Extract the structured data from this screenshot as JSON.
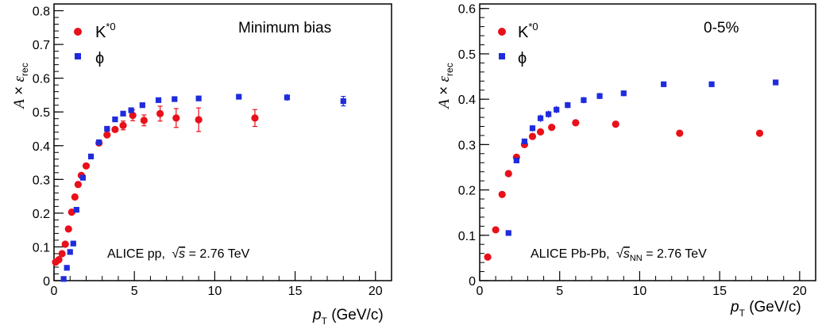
{
  "colors": {
    "kstar": "#e8101a",
    "phi": "#1f2bdc",
    "axis": "#000000"
  },
  "chart_data": [
    {
      "type": "scatter",
      "annotation": "Minimum bias",
      "system_label": "ALICE   pp,",
      "energy_label": "= 2.76 TeV",
      "xlabel_unit": "(GeV/c)",
      "xlim": [
        0,
        21
      ],
      "ylim": [
        0,
        0.82
      ],
      "xticks": [
        0,
        5,
        10,
        15,
        20
      ],
      "yticks": [
        0,
        0.1,
        0.2,
        0.3,
        0.4,
        0.5,
        0.6,
        0.7,
        0.8
      ],
      "legend": [
        "K*0",
        "ϕ"
      ],
      "series": [
        {
          "name": "K*0",
          "marker": "circle",
          "points": [
            {
              "x": 0.1,
              "y": 0.055,
              "err": 0.005
            },
            {
              "x": 0.3,
              "y": 0.062,
              "err": 0.005
            },
            {
              "x": 0.5,
              "y": 0.08,
              "err": 0.005
            },
            {
              "x": 0.7,
              "y": 0.108,
              "err": 0.005
            },
            {
              "x": 0.9,
              "y": 0.153,
              "err": 0.005
            },
            {
              "x": 1.1,
              "y": 0.203,
              "err": 0.005
            },
            {
              "x": 1.3,
              "y": 0.248,
              "err": 0.005
            },
            {
              "x": 1.5,
              "y": 0.285,
              "err": 0.005
            },
            {
              "x": 1.7,
              "y": 0.312,
              "err": 0.005
            },
            {
              "x": 2.0,
              "y": 0.34,
              "err": 0.005
            },
            {
              "x": 2.8,
              "y": 0.408,
              "err": 0.006
            },
            {
              "x": 3.3,
              "y": 0.432,
              "err": 0.008
            },
            {
              "x": 3.8,
              "y": 0.448,
              "err": 0.01
            },
            {
              "x": 4.3,
              "y": 0.46,
              "err": 0.013
            },
            {
              "x": 4.9,
              "y": 0.49,
              "err": 0.016
            },
            {
              "x": 5.6,
              "y": 0.475,
              "err": 0.016
            },
            {
              "x": 6.6,
              "y": 0.495,
              "err": 0.022
            },
            {
              "x": 7.6,
              "y": 0.482,
              "err": 0.028
            },
            {
              "x": 9.0,
              "y": 0.477,
              "err": 0.035
            },
            {
              "x": 12.5,
              "y": 0.482,
              "err": 0.025
            }
          ]
        },
        {
          "name": "ϕ",
          "marker": "square",
          "points": [
            {
              "x": 0.6,
              "y": 0.005,
              "err": 0.003
            },
            {
              "x": 0.8,
              "y": 0.038,
              "err": 0.003
            },
            {
              "x": 1.0,
              "y": 0.085,
              "err": 0.004
            },
            {
              "x": 1.2,
              "y": 0.11,
              "err": 0.005
            },
            {
              "x": 1.4,
              "y": 0.21,
              "err": 0.005
            },
            {
              "x": 1.8,
              "y": 0.305,
              "err": 0.005
            },
            {
              "x": 2.3,
              "y": 0.368,
              "err": 0.005
            },
            {
              "x": 2.8,
              "y": 0.41,
              "err": 0.005
            },
            {
              "x": 3.3,
              "y": 0.45,
              "err": 0.005
            },
            {
              "x": 3.8,
              "y": 0.478,
              "err": 0.005
            },
            {
              "x": 4.3,
              "y": 0.495,
              "err": 0.006
            },
            {
              "x": 4.8,
              "y": 0.505,
              "err": 0.006
            },
            {
              "x": 5.5,
              "y": 0.52,
              "err": 0.006
            },
            {
              "x": 6.5,
              "y": 0.535,
              "err": 0.007
            },
            {
              "x": 7.5,
              "y": 0.538,
              "err": 0.007
            },
            {
              "x": 9.0,
              "y": 0.54,
              "err": 0.008
            },
            {
              "x": 11.5,
              "y": 0.545,
              "err": 0.008
            },
            {
              "x": 14.5,
              "y": 0.543,
              "err": 0.01
            },
            {
              "x": 18.0,
              "y": 0.532,
              "err": 0.014
            }
          ]
        }
      ]
    },
    {
      "type": "scatter",
      "annotation": "0-5%",
      "system_label": "ALICE   Pb-Pb,",
      "energy_label": "= 2.76 TeV",
      "xlabel_unit": "(GeV/c)",
      "xlim": [
        0,
        21
      ],
      "ylim": [
        0,
        0.61
      ],
      "xticks": [
        0,
        5,
        10,
        15,
        20
      ],
      "yticks": [
        0,
        0.1,
        0.2,
        0.3,
        0.4,
        0.5,
        0.6
      ],
      "legend": [
        "K*0",
        "ϕ"
      ],
      "series": [
        {
          "name": "K*0",
          "marker": "circle",
          "points": [
            {
              "x": 0.5,
              "y": 0.052,
              "err": 0.003
            },
            {
              "x": 1.0,
              "y": 0.112,
              "err": 0.003
            },
            {
              "x": 1.4,
              "y": 0.19,
              "err": 0.003
            },
            {
              "x": 1.8,
              "y": 0.236,
              "err": 0.003
            },
            {
              "x": 2.3,
              "y": 0.272,
              "err": 0.004
            },
            {
              "x": 2.8,
              "y": 0.3,
              "err": 0.004
            },
            {
              "x": 3.3,
              "y": 0.318,
              "err": 0.004
            },
            {
              "x": 3.8,
              "y": 0.328,
              "err": 0.004
            },
            {
              "x": 4.5,
              "y": 0.338,
              "err": 0.004
            },
            {
              "x": 6.0,
              "y": 0.348,
              "err": 0.004
            },
            {
              "x": 8.5,
              "y": 0.345,
              "err": 0.004
            },
            {
              "x": 12.5,
              "y": 0.325,
              "err": 0.005
            },
            {
              "x": 17.5,
              "y": 0.325,
              "err": 0.007
            }
          ]
        },
        {
          "name": "ϕ",
          "marker": "square",
          "points": [
            {
              "x": 1.8,
              "y": 0.105,
              "err": 0.003
            },
            {
              "x": 2.3,
              "y": 0.265,
              "err": 0.004
            },
            {
              "x": 2.8,
              "y": 0.307,
              "err": 0.006
            },
            {
              "x": 3.3,
              "y": 0.336,
              "err": 0.007
            },
            {
              "x": 3.8,
              "y": 0.358,
              "err": 0.008
            },
            {
              "x": 4.3,
              "y": 0.367,
              "err": 0.008
            },
            {
              "x": 4.8,
              "y": 0.377,
              "err": 0.008
            },
            {
              "x": 5.5,
              "y": 0.387,
              "err": 0.007
            },
            {
              "x": 6.5,
              "y": 0.398,
              "err": 0.007
            },
            {
              "x": 7.5,
              "y": 0.407,
              "err": 0.007
            },
            {
              "x": 9.0,
              "y": 0.413,
              "err": 0.006
            },
            {
              "x": 11.5,
              "y": 0.433,
              "err": 0.006
            },
            {
              "x": 14.5,
              "y": 0.433,
              "err": 0.006
            },
            {
              "x": 18.5,
              "y": 0.437,
              "err": 0.006
            }
          ]
        }
      ]
    }
  ]
}
